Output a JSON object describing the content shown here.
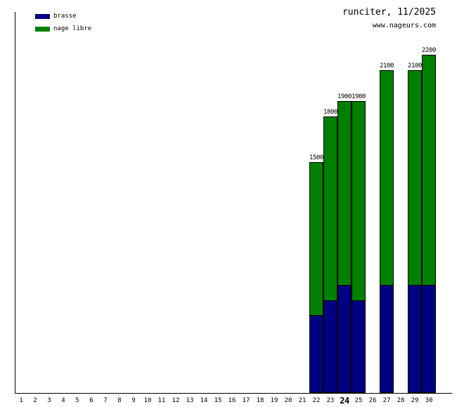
{
  "header": {
    "title": "runciter, 11/2025",
    "website": "www.nageurs.com"
  },
  "legend": {
    "items": [
      {
        "label": "brasse",
        "color": "#000080"
      },
      {
        "label": "nage libre",
        "color": "#008000"
      }
    ]
  },
  "chart_data": {
    "type": "bar",
    "stacked": true,
    "title": "runciter, 11/2025",
    "subtitle": "www.nageurs.com",
    "xlabel": "",
    "ylabel": "",
    "grid": false,
    "legend_position": "top-left",
    "categories": [
      "1",
      "2",
      "3",
      "4",
      "5",
      "6",
      "7",
      "8",
      "9",
      "10",
      "11",
      "12",
      "13",
      "14",
      "15",
      "16",
      "17",
      "18",
      "19",
      "20",
      "21",
      "22",
      "23",
      "24",
      "25",
      "26",
      "27",
      "28",
      "29",
      "30"
    ],
    "highlighted_category": "24",
    "bar_days": [
      22,
      23,
      24,
      25,
      27,
      29,
      30
    ],
    "series": [
      {
        "name": "brasse",
        "color": "#000080",
        "values": [
          500,
          600,
          700,
          600,
          700,
          700,
          700
        ]
      },
      {
        "name": "nage libre",
        "color": "#008000",
        "values": [
          1000,
          1200,
          1200,
          1300,
          1400,
          1400,
          1500
        ]
      }
    ],
    "totals": [
      1500,
      1800,
      1900,
      1900,
      2100,
      2100,
      2200
    ],
    "total_labels": [
      "1500",
      "1800",
      "1900",
      "1900",
      "2100",
      "2100",
      "2200"
    ],
    "ylim": [
      0,
      2300
    ]
  }
}
